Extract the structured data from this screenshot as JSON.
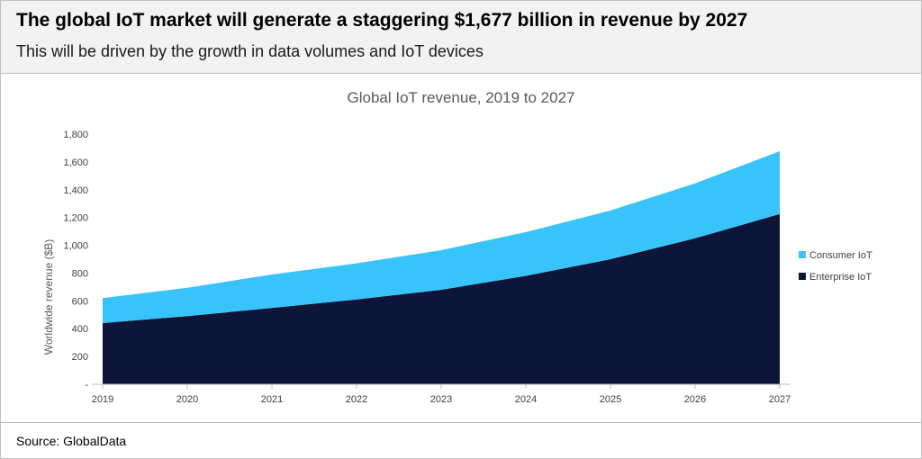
{
  "header": {
    "headline": "The global IoT market will generate a staggering $1,677 billion in revenue by 2027",
    "subhead": "This will be driven by the growth in data volumes and IoT devices"
  },
  "footer": {
    "source": "Source: GlobalData"
  },
  "chart_data": {
    "type": "area",
    "stacked": true,
    "title": "Global IoT revenue, 2019 to 2027",
    "xlabel": "",
    "ylabel": "Worldwide revenue ($B)",
    "categories": [
      "2019",
      "2020",
      "2021",
      "2022",
      "2023",
      "2024",
      "2025",
      "2026",
      "2027"
    ],
    "ylim": [
      0,
      1800
    ],
    "yticks": [
      0,
      200,
      400,
      600,
      800,
      1000,
      1200,
      1400,
      1600,
      1800
    ],
    "ytick_labels": [
      "-",
      "200",
      "400",
      "600",
      "800",
      "1,000",
      "1,200",
      "1,400",
      "1,600",
      "1,800"
    ],
    "grid": false,
    "legend_position": "right",
    "series": [
      {
        "name": "Enterprise IoT",
        "color": "#0d1538",
        "values": [
          440,
          490,
          550,
          610,
          680,
          780,
          900,
          1050,
          1225
        ]
      },
      {
        "name": "Consumer IoT",
        "color": "#38c4fb",
        "values": [
          180,
          205,
          240,
          260,
          285,
          315,
          350,
          395,
          452
        ]
      }
    ],
    "totals": [
      620,
      695,
      790,
      870,
      965,
      1095,
      1250,
      1445,
      1677
    ],
    "legend_order": [
      "Consumer IoT",
      "Enterprise IoT"
    ]
  }
}
